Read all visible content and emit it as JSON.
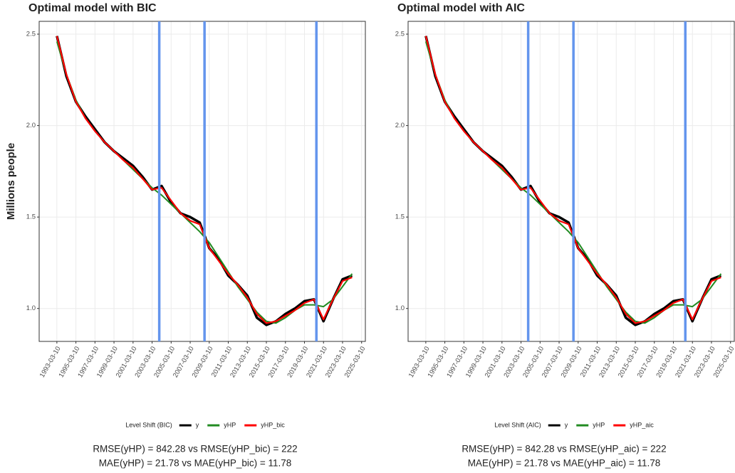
{
  "chart_data": [
    {
      "type": "line",
      "title": "Optimal model with BIC",
      "y_label": "Millions people",
      "legend_title": "Level Shift (BIC)",
      "annotations": [
        "RMSE(yHP) = 842.28   vs   RMSE(yHP_bic) = 222",
        "MAE(yHP) = 21.78   vs   MAE(yHP_bic) = 11.78"
      ],
      "x": [
        "1993-03-10",
        "1994-03-10",
        "1995-03-10",
        "1996-03-10",
        "1997-03-10",
        "1998-03-10",
        "1999-03-10",
        "2000-03-10",
        "2001-03-10",
        "2002-03-10",
        "2003-03-10",
        "2004-03-10",
        "2005-03-10",
        "2006-03-10",
        "2007-03-10",
        "2008-03-10",
        "2009-03-10",
        "2010-03-10",
        "2011-03-10",
        "2012-03-10",
        "2013-03-10",
        "2014-03-10",
        "2015-03-10",
        "2016-03-10",
        "2017-03-10",
        "2018-03-10",
        "2019-03-10",
        "2020-03-10",
        "2021-03-10",
        "2022-03-10",
        "2023-03-10",
        "2024-03-10"
      ],
      "series": [
        {
          "name": "y",
          "color": "#000000",
          "width": 3.5,
          "values": [
            2.49,
            2.27,
            2.13,
            2.05,
            1.98,
            1.91,
            1.86,
            1.82,
            1.78,
            1.72,
            1.65,
            1.67,
            1.58,
            1.52,
            1.5,
            1.47,
            1.33,
            1.27,
            1.18,
            1.13,
            1.07,
            0.95,
            0.91,
            0.93,
            0.97,
            1.0,
            1.04,
            1.05,
            0.93,
            1.05,
            1.16,
            1.18
          ]
        },
        {
          "name": "yHP",
          "color": "#228b22",
          "width": 2,
          "values": [
            2.46,
            2.28,
            2.14,
            2.04,
            1.97,
            1.91,
            1.86,
            1.81,
            1.76,
            1.71,
            1.66,
            1.62,
            1.57,
            1.52,
            1.47,
            1.42,
            1.36,
            1.28,
            1.2,
            1.12,
            1.05,
            0.98,
            0.93,
            0.92,
            0.95,
            0.99,
            1.02,
            1.02,
            1.01,
            1.05,
            1.12,
            1.19
          ]
        },
        {
          "name": "yHP_bic",
          "color": "#ff0000",
          "width": 2.2,
          "values": [
            2.49,
            2.28,
            2.13,
            2.04,
            1.97,
            1.91,
            1.86,
            1.81,
            1.77,
            1.71,
            1.65,
            1.66,
            1.59,
            1.52,
            1.48,
            1.46,
            1.33,
            1.26,
            1.19,
            1.13,
            1.06,
            0.97,
            0.92,
            0.93,
            0.96,
            0.99,
            1.03,
            1.05,
            0.94,
            1.05,
            1.15,
            1.17
          ]
        }
      ],
      "level_shifts": [
        "2003-12-10",
        "2008-09-10",
        "2020-06-10"
      ],
      "level_shift_color": "#6495ed",
      "xlim": [
        "1991-05-01",
        "2025-08-01"
      ],
      "xticks": [
        "1993-03-10",
        "1995-03-10",
        "1997-03-10",
        "1999-03-10",
        "2001-03-10",
        "2003-03-10",
        "2005-03-10",
        "2007-03-10",
        "2009-03-10",
        "2011-03-10",
        "2013-03-10",
        "2015-03-10",
        "2017-03-10",
        "2019-03-10",
        "2021-03-10",
        "2023-03-10",
        "2025-03-10"
      ],
      "ylim": [
        0.82,
        2.57
      ],
      "yticks": [
        {
          "value": 1,
          "label": "1.0"
        },
        1.5,
        {
          "value": 2,
          "label": "2.0"
        },
        2.5
      ],
      "grid": true
    },
    {
      "type": "line",
      "title": "Optimal model with AIC",
      "legend_title": "Level Shift (AIC)",
      "annotations": [
        "RMSE(yHP) = 842.28   vs   RMSE(yHP_aic) = 222",
        "MAE(yHP) = 21.78   vs   MAE(yHP_aic) = 11.78"
      ],
      "x": [
        "1993-03-10",
        "1994-03-10",
        "1995-03-10",
        "1996-03-10",
        "1997-03-10",
        "1998-03-10",
        "1999-03-10",
        "2000-03-10",
        "2001-03-10",
        "2002-03-10",
        "2003-03-10",
        "2004-03-10",
        "2005-03-10",
        "2006-03-10",
        "2007-03-10",
        "2008-03-10",
        "2009-03-10",
        "2010-03-10",
        "2011-03-10",
        "2012-03-10",
        "2013-03-10",
        "2014-03-10",
        "2015-03-10",
        "2016-03-10",
        "2017-03-10",
        "2018-03-10",
        "2019-03-10",
        "2020-03-10",
        "2021-03-10",
        "2022-03-10",
        "2023-03-10",
        "2024-03-10"
      ],
      "series": [
        {
          "name": "y",
          "color": "#000000",
          "width": 3.5,
          "values": [
            2.49,
            2.27,
            2.13,
            2.05,
            1.98,
            1.91,
            1.86,
            1.82,
            1.78,
            1.72,
            1.65,
            1.67,
            1.58,
            1.52,
            1.5,
            1.47,
            1.33,
            1.27,
            1.18,
            1.13,
            1.07,
            0.95,
            0.91,
            0.93,
            0.97,
            1.0,
            1.04,
            1.05,
            0.93,
            1.05,
            1.16,
            1.18
          ]
        },
        {
          "name": "yHP",
          "color": "#228b22",
          "width": 2,
          "values": [
            2.46,
            2.28,
            2.14,
            2.04,
            1.97,
            1.91,
            1.86,
            1.81,
            1.76,
            1.71,
            1.66,
            1.62,
            1.57,
            1.52,
            1.47,
            1.42,
            1.36,
            1.28,
            1.2,
            1.12,
            1.05,
            0.98,
            0.93,
            0.92,
            0.95,
            0.99,
            1.02,
            1.02,
            1.01,
            1.05,
            1.12,
            1.19
          ]
        },
        {
          "name": "yHP_aic",
          "color": "#ff0000",
          "width": 2.2,
          "values": [
            2.49,
            2.28,
            2.13,
            2.04,
            1.97,
            1.91,
            1.86,
            1.81,
            1.77,
            1.71,
            1.65,
            1.66,
            1.59,
            1.52,
            1.48,
            1.46,
            1.33,
            1.26,
            1.19,
            1.13,
            1.06,
            0.97,
            0.92,
            0.93,
            0.96,
            0.99,
            1.03,
            1.05,
            0.94,
            1.05,
            1.15,
            1.17
          ]
        }
      ],
      "level_shifts": [
        "2003-12-10",
        "2008-09-10",
        "2020-06-10"
      ],
      "level_shift_color": "#6495ed",
      "xlim": [
        "1991-05-01",
        "2025-08-01"
      ],
      "xticks": [
        "1993-03-10",
        "1995-03-10",
        "1997-03-10",
        "1999-03-10",
        "2001-03-10",
        "2003-03-10",
        "2005-03-10",
        "2007-03-10",
        "2009-03-10",
        "2011-03-10",
        "2013-03-10",
        "2015-03-10",
        "2017-03-10",
        "2019-03-10",
        "2021-03-10",
        "2023-03-10",
        "2025-03-10"
      ],
      "ylim": [
        0.82,
        2.57
      ],
      "yticks": [
        {
          "value": 1,
          "label": "1.0"
        },
        1.5,
        {
          "value": 2,
          "label": "2.0"
        },
        2.5
      ],
      "grid": true
    }
  ]
}
